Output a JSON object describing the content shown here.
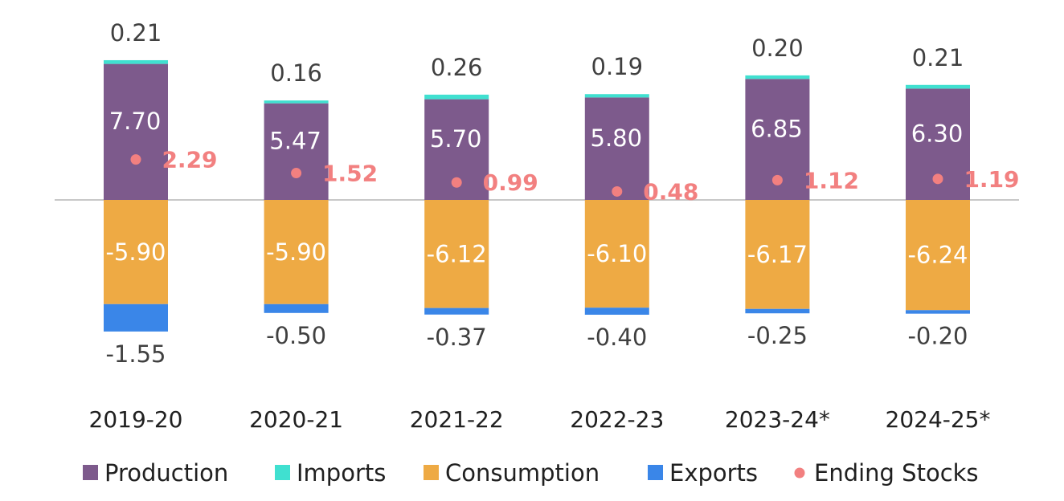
{
  "colors": {
    "production": "#7D5A8C",
    "imports": "#40E0D0",
    "consumption": "#EEAA44",
    "exports": "#3A86E8",
    "ending_stocks": "#F28080",
    "zero_line": "#c8c8c8"
  },
  "chart_data": {
    "type": "bar",
    "stacked": true,
    "categories": [
      "2019-20",
      "2020-21",
      "2021-22",
      "2022-23",
      "2023-24*",
      "2024-25*"
    ],
    "series": [
      {
        "name": "Production",
        "kind": "bar",
        "values": [
          7.7,
          5.47,
          5.7,
          5.8,
          6.85,
          6.3
        ]
      },
      {
        "name": "Imports",
        "kind": "bar",
        "values": [
          0.21,
          0.16,
          0.26,
          0.19,
          0.2,
          0.21
        ]
      },
      {
        "name": "Consumption",
        "kind": "bar",
        "values": [
          -5.9,
          -5.9,
          -6.12,
          -6.1,
          -6.17,
          -6.24
        ]
      },
      {
        "name": "Exports",
        "kind": "bar",
        "values": [
          -1.55,
          -0.5,
          -0.37,
          -0.4,
          -0.25,
          -0.2
        ]
      },
      {
        "name": "Ending Stocks",
        "kind": "point",
        "values": [
          2.29,
          1.52,
          0.99,
          0.48,
          1.12,
          1.19
        ]
      }
    ],
    "value_labels": {
      "Production": [
        "7.70",
        "5.47",
        "5.70",
        "5.80",
        "6.85",
        "6.30"
      ],
      "Imports": [
        "0.21",
        "0.16",
        "0.26",
        "0.19",
        "0.20",
        "0.21"
      ],
      "Consumption": [
        "-5.90",
        "-5.90",
        "-6.12",
        "-6.10",
        "-6.17",
        "-6.24"
      ],
      "Exports": [
        "-1.55",
        "-0.50",
        "-0.37",
        "-0.40",
        "-0.25",
        "-0.20"
      ],
      "Ending Stocks": [
        "2.29",
        "1.52",
        "0.99",
        "0.48",
        "1.12",
        "1.19"
      ]
    },
    "legend": [
      "Production",
      "Imports",
      "Consumption",
      "Exports",
      "Ending Stocks"
    ],
    "legend_position": "bottom",
    "grid": false,
    "title": "",
    "xlabel": "",
    "ylabel": ""
  }
}
